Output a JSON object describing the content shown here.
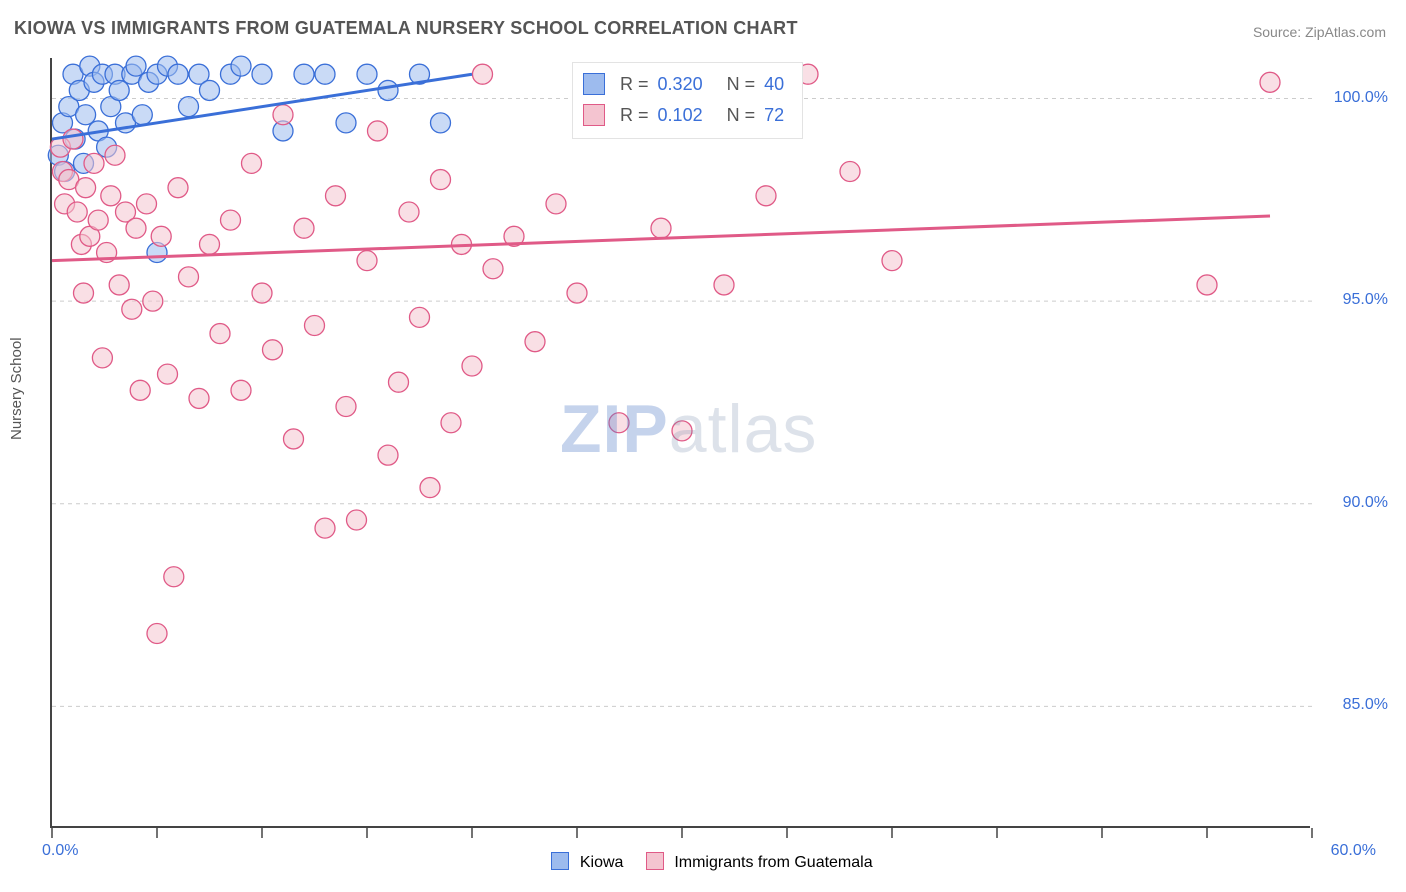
{
  "title": "KIOWA VS IMMIGRANTS FROM GUATEMALA NURSERY SCHOOL CORRELATION CHART",
  "source": "Source: ZipAtlas.com",
  "watermark": "ZIPatlas",
  "ylabel": "Nursery School",
  "chart": {
    "type": "scatter",
    "background_color": "#ffffff",
    "grid_color": "#cccccc",
    "axis_color": "#444444",
    "xlim": [
      0,
      60
    ],
    "ylim": [
      82,
      101
    ],
    "xticks_positions": [
      0,
      5,
      10,
      15,
      20,
      25,
      30,
      35,
      40,
      45,
      50,
      55,
      60
    ],
    "yticks": [
      {
        "v": 100,
        "label": "100.0%"
      },
      {
        "v": 95,
        "label": "95.0%"
      },
      {
        "v": 90,
        "label": "90.0%"
      },
      {
        "v": 85,
        "label": "85.0%"
      }
    ],
    "xtick_labels": {
      "left": "0.0%",
      "right": "60.0%"
    },
    "marker_radius": 10,
    "marker_opacity": 0.55,
    "series": [
      {
        "id": "kiowa",
        "label": "Kiowa",
        "fill": "#9dbbee",
        "stroke": "#3a6fd8",
        "R": "0.320",
        "N": "40",
        "trend": {
          "x1": 0,
          "y1": 99.0,
          "x2": 20,
          "y2": 100.6,
          "color": "#3a6fd8"
        },
        "points": [
          [
            0.3,
            98.6
          ],
          [
            0.5,
            99.4
          ],
          [
            0.6,
            98.2
          ],
          [
            0.8,
            99.8
          ],
          [
            1.0,
            100.6
          ],
          [
            1.1,
            99.0
          ],
          [
            1.3,
            100.2
          ],
          [
            1.5,
            98.4
          ],
          [
            1.6,
            99.6
          ],
          [
            1.8,
            100.8
          ],
          [
            2.0,
            100.4
          ],
          [
            2.2,
            99.2
          ],
          [
            2.4,
            100.6
          ],
          [
            2.6,
            98.8
          ],
          [
            2.8,
            99.8
          ],
          [
            3.0,
            100.6
          ],
          [
            3.2,
            100.2
          ],
          [
            3.5,
            99.4
          ],
          [
            3.8,
            100.6
          ],
          [
            4.0,
            100.8
          ],
          [
            4.3,
            99.6
          ],
          [
            4.6,
            100.4
          ],
          [
            5.0,
            96.2
          ],
          [
            5.0,
            100.6
          ],
          [
            5.5,
            100.8
          ],
          [
            6.0,
            100.6
          ],
          [
            6.5,
            99.8
          ],
          [
            7.0,
            100.6
          ],
          [
            7.5,
            100.2
          ],
          [
            8.5,
            100.6
          ],
          [
            9.0,
            100.8
          ],
          [
            10.0,
            100.6
          ],
          [
            11.0,
            99.2
          ],
          [
            12.0,
            100.6
          ],
          [
            13.0,
            100.6
          ],
          [
            14.0,
            99.4
          ],
          [
            15.0,
            100.6
          ],
          [
            16.0,
            100.2
          ],
          [
            17.5,
            100.6
          ],
          [
            18.5,
            99.4
          ]
        ]
      },
      {
        "id": "guatemala",
        "label": "Immigrants from Guatemala",
        "fill": "#f4c4d0",
        "stroke": "#e05a87",
        "R": "0.102",
        "N": "72",
        "trend": {
          "x1": 0,
          "y1": 96.0,
          "x2": 58,
          "y2": 97.1,
          "color": "#e05a87"
        },
        "points": [
          [
            0.4,
            98.8
          ],
          [
            0.5,
            98.2
          ],
          [
            0.6,
            97.4
          ],
          [
            0.8,
            98.0
          ],
          [
            1.0,
            99.0
          ],
          [
            1.2,
            97.2
          ],
          [
            1.4,
            96.4
          ],
          [
            1.5,
            95.2
          ],
          [
            1.6,
            97.8
          ],
          [
            1.8,
            96.6
          ],
          [
            2.0,
            98.4
          ],
          [
            2.2,
            97.0
          ],
          [
            2.4,
            93.6
          ],
          [
            2.6,
            96.2
          ],
          [
            2.8,
            97.6
          ],
          [
            3.0,
            98.6
          ],
          [
            3.2,
            95.4
          ],
          [
            3.5,
            97.2
          ],
          [
            3.8,
            94.8
          ],
          [
            4.0,
            96.8
          ],
          [
            4.2,
            92.8
          ],
          [
            4.5,
            97.4
          ],
          [
            4.8,
            95.0
          ],
          [
            5.0,
            86.8
          ],
          [
            5.2,
            96.6
          ],
          [
            5.5,
            93.2
          ],
          [
            5.8,
            88.2
          ],
          [
            6.0,
            97.8
          ],
          [
            6.5,
            95.6
          ],
          [
            7.0,
            92.6
          ],
          [
            7.5,
            96.4
          ],
          [
            8.0,
            94.2
          ],
          [
            8.5,
            97.0
          ],
          [
            9.0,
            92.8
          ],
          [
            9.5,
            98.4
          ],
          [
            10.0,
            95.2
          ],
          [
            10.5,
            93.8
          ],
          [
            11.0,
            99.6
          ],
          [
            11.5,
            91.6
          ],
          [
            12.0,
            96.8
          ],
          [
            12.5,
            94.4
          ],
          [
            13.0,
            89.4
          ],
          [
            13.5,
            97.6
          ],
          [
            14.0,
            92.4
          ],
          [
            14.5,
            89.6
          ],
          [
            15.0,
            96.0
          ],
          [
            15.5,
            99.2
          ],
          [
            16.0,
            91.2
          ],
          [
            16.5,
            93.0
          ],
          [
            17.0,
            97.2
          ],
          [
            17.5,
            94.6
          ],
          [
            18.0,
            90.4
          ],
          [
            18.5,
            98.0
          ],
          [
            19.0,
            92.0
          ],
          [
            19.5,
            96.4
          ],
          [
            20.0,
            93.4
          ],
          [
            20.5,
            100.6
          ],
          [
            21.0,
            95.8
          ],
          [
            22.0,
            96.6
          ],
          [
            23.0,
            94.0
          ],
          [
            24.0,
            97.4
          ],
          [
            25.0,
            95.2
          ],
          [
            27.0,
            92.0
          ],
          [
            29.0,
            96.8
          ],
          [
            30.0,
            91.8
          ],
          [
            32.0,
            95.4
          ],
          [
            34.0,
            97.6
          ],
          [
            36.0,
            100.6
          ],
          [
            38.0,
            98.2
          ],
          [
            40.0,
            96.0
          ],
          [
            55.0,
            95.4
          ],
          [
            58.0,
            100.4
          ]
        ]
      }
    ]
  },
  "legend": {
    "r_label": "R =",
    "n_label": "N ="
  }
}
